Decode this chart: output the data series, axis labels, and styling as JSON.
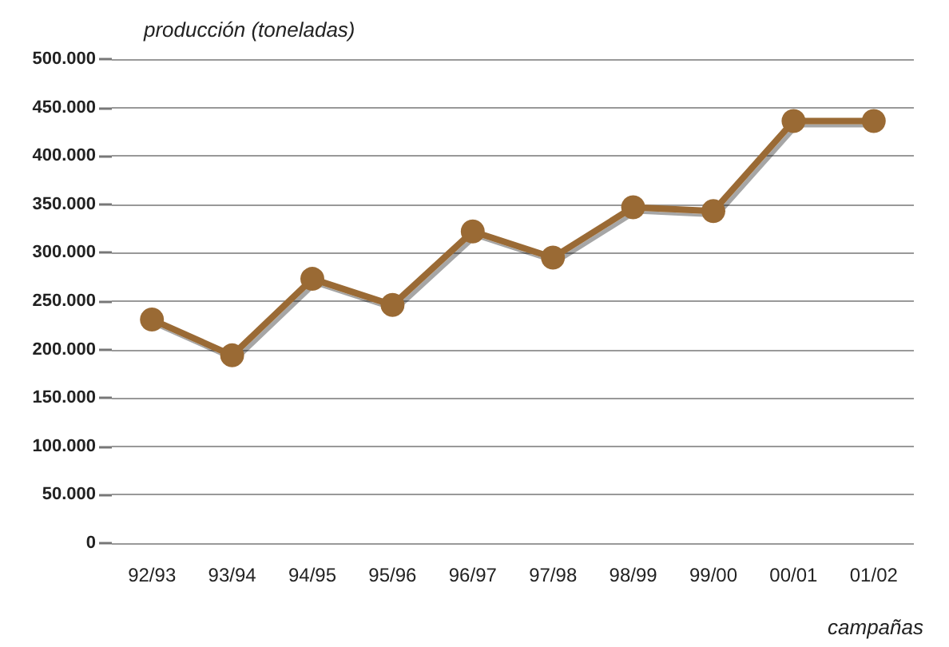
{
  "chart_data": {
    "type": "line",
    "ylabel": "producción (toneladas)",
    "xlabel": "campañas",
    "categories": [
      "92/93",
      "93/94",
      "94/95",
      "95/96",
      "96/97",
      "97/98",
      "98/99",
      "99/00",
      "00/01",
      "01/02"
    ],
    "series": [
      {
        "color": "#9a6a34",
        "values": [
          231000,
          194000,
          273000,
          246000,
          322000,
          295000,
          347000,
          343000,
          436000,
          436000
        ]
      }
    ],
    "ylim": [
      0,
      500000
    ],
    "yticks": [
      0,
      {
        "value": 50000,
        "label": "50.000"
      },
      {
        "value": 100000,
        "label": "100.000"
      },
      {
        "value": 150000,
        "label": "150.000"
      },
      {
        "value": 200000,
        "label": "200.000"
      },
      {
        "value": 250000,
        "label": "250.000"
      },
      {
        "value": 300000,
        "label": "300.000"
      },
      {
        "value": 350000,
        "label": "350.000"
      },
      {
        "value": 400000,
        "label": "400.000"
      },
      {
        "value": 450000,
        "label": "450.000"
      },
      {
        "value": 500000,
        "label": "500.000"
      }
    ],
    "grid": "y",
    "marker": "circle",
    "line_style": "solid"
  }
}
